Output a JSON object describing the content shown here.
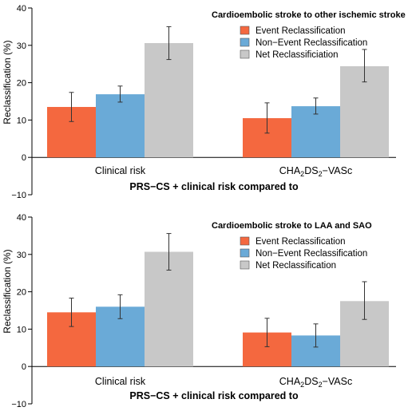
{
  "colors": {
    "event": "#f4683f",
    "nonevent": "#6aaad7",
    "net": "#c8c8c8",
    "axis": "#000000",
    "errorbar": "#333333"
  },
  "chart_data": [
    {
      "type": "bar",
      "title": "Cardioembolic stroke to other ischemic stroke",
      "xlabel": "PRS−CS + clinical risk compared to",
      "ylabel": "Reclassification (%)",
      "ylim": [
        -10,
        40
      ],
      "yticks": [
        "−10",
        "0",
        "10",
        "20",
        "30",
        "40"
      ],
      "ytick_values": [
        -10,
        0,
        10,
        20,
        30,
        40
      ],
      "categories": [
        {
          "text": "Clinical risk"
        },
        {
          "base": "CHA",
          "sub1": "2",
          "mid": "DS",
          "sub2": "2",
          "tail": "−VASc"
        }
      ],
      "legend_position": "top-right",
      "series": [
        {
          "name": "Event Reclassification",
          "color_key": "event",
          "values": [
            13.5,
            10.5
          ],
          "err_low": [
            9.6,
            6.5
          ],
          "err_high": [
            17.4,
            14.6
          ]
        },
        {
          "name": "Non−Event Reclassification",
          "color_key": "nonevent",
          "values": [
            16.9,
            13.7
          ],
          "err_low": [
            14.8,
            11.6
          ],
          "err_high": [
            19.1,
            15.9
          ]
        },
        {
          "name": "Net Reclassificiation",
          "color_key": "net",
          "values": [
            30.6,
            24.4
          ],
          "err_low": [
            26.2,
            20.2
          ],
          "err_high": [
            35.0,
            28.9
          ]
        }
      ]
    },
    {
      "type": "bar",
      "title": "Cardioembolic stroke to LAA and SAO",
      "xlabel": "PRS−CS + clinical risk compared to",
      "ylabel": "Reclassification (%)",
      "ylim": [
        -10,
        40
      ],
      "yticks": [
        "−10",
        "0",
        "10",
        "20",
        "30",
        "40"
      ],
      "ytick_values": [
        -10,
        0,
        10,
        20,
        30,
        40
      ],
      "categories": [
        {
          "text": "Clinical risk"
        },
        {
          "base": "CHA",
          "sub1": "2",
          "mid": "DS",
          "sub2": "2",
          "tail": "−VASc"
        }
      ],
      "legend_position": "top-right",
      "series": [
        {
          "name": "Event Reclassification",
          "color_key": "event",
          "values": [
            14.5,
            9.1
          ],
          "err_low": [
            10.7,
            5.3
          ],
          "err_high": [
            18.3,
            12.9
          ]
        },
        {
          "name": "Non−Event Reclassification",
          "color_key": "nonevent",
          "values": [
            16.0,
            8.3
          ],
          "err_low": [
            12.8,
            5.2
          ],
          "err_high": [
            19.2,
            11.4
          ]
        },
        {
          "name": "Net Reclassification",
          "color_key": "net",
          "values": [
            30.7,
            17.5
          ],
          "err_low": [
            25.8,
            12.6
          ],
          "err_high": [
            35.6,
            22.7
          ]
        }
      ]
    }
  ]
}
